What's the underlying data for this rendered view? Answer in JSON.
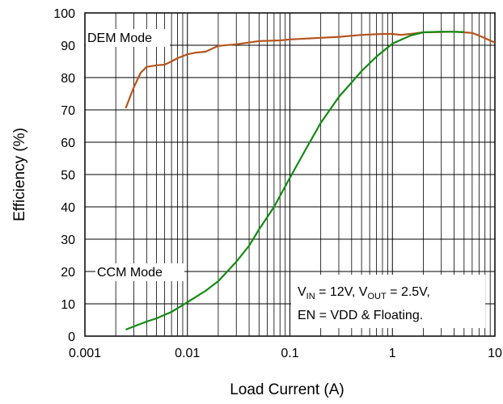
{
  "chart_data": {
    "type": "line",
    "title": "",
    "xlabel": "Load Current (A)",
    "ylabel": "Efficiency (%)",
    "xscale": "log",
    "xlim": [
      0.001,
      10
    ],
    "ylim": [
      0,
      100
    ],
    "grid": true,
    "x_tick_labels": [
      "0.001",
      "0.01",
      "0.1",
      "1",
      "10"
    ],
    "y_tick_labels": [
      "0",
      "10",
      "20",
      "30",
      "40",
      "50",
      "60",
      "70",
      "80",
      "90",
      "100"
    ],
    "series": [
      {
        "name": "DEM Mode",
        "color": "#b5541c",
        "points": [
          [
            0.0025,
            70.5
          ],
          [
            0.003,
            77
          ],
          [
            0.0035,
            81.5
          ],
          [
            0.004,
            83.3
          ],
          [
            0.005,
            83.8
          ],
          [
            0.006,
            84
          ],
          [
            0.007,
            85
          ],
          [
            0.008,
            86
          ],
          [
            0.01,
            87.2
          ],
          [
            0.012,
            87.7
          ],
          [
            0.015,
            88
          ],
          [
            0.02,
            89.8
          ],
          [
            0.03,
            90.3
          ],
          [
            0.05,
            91.3
          ],
          [
            0.08,
            91.5
          ],
          [
            0.1,
            91.8
          ],
          [
            0.2,
            92.3
          ],
          [
            0.3,
            92.6
          ],
          [
            0.5,
            93.2
          ],
          [
            0.8,
            93.5
          ],
          [
            1,
            93.5
          ],
          [
            1.2,
            93.2
          ],
          [
            1.5,
            93.5
          ],
          [
            2,
            94
          ],
          [
            3,
            94.1
          ],
          [
            4,
            94.2
          ],
          [
            5,
            94
          ],
          [
            6,
            93.8
          ],
          [
            7,
            93
          ],
          [
            8,
            92.2
          ],
          [
            10,
            90.8
          ]
        ]
      },
      {
        "name": "CCM Mode",
        "color": "#138a13",
        "points": [
          [
            0.0025,
            2
          ],
          [
            0.003,
            3
          ],
          [
            0.004,
            4.5
          ],
          [
            0.005,
            5.5
          ],
          [
            0.007,
            7.5
          ],
          [
            0.01,
            10.5
          ],
          [
            0.015,
            14
          ],
          [
            0.02,
            17
          ],
          [
            0.03,
            23
          ],
          [
            0.04,
            28
          ],
          [
            0.05,
            33
          ],
          [
            0.07,
            40
          ],
          [
            0.1,
            49
          ],
          [
            0.15,
            59
          ],
          [
            0.2,
            66
          ],
          [
            0.3,
            74
          ],
          [
            0.5,
            82
          ],
          [
            0.7,
            86.5
          ],
          [
            1,
            90.5
          ],
          [
            1.5,
            93
          ],
          [
            2,
            94
          ],
          [
            3,
            94.2
          ],
          [
            5,
            94.1
          ]
        ]
      }
    ],
    "annotations": {
      "vin_label": "V",
      "vin_sub": "IN",
      "vin_value": " = 12V, V",
      "vout_sub": "OUT",
      "vout_value": " = 2.5V,",
      "en_line": "EN = VDD & Floating."
    }
  }
}
